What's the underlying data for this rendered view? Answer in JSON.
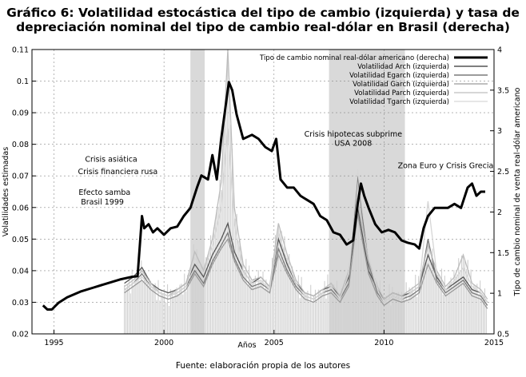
{
  "title_line1": "Gráfico 6: Volatilidad estocástica del tipo de cambio (izquierda) y tasa de",
  "title_line2": "depreciación nominal del tipo de cambio real-dólar en Brasil (derecha)",
  "source": "Fuente: elaboración propia de los autores",
  "chart_data": {
    "type": "line",
    "xlabel": "Años",
    "ylabel_left": "Volatilidades estimadas",
    "ylabel_right": "Tipo de cambio nominal de venta real-dólar americano",
    "xlim": [
      1994,
      2015
    ],
    "ylim_left": [
      0.02,
      0.11
    ],
    "ylim_right": [
      0.5,
      4
    ],
    "x_ticks": [
      1995,
      2000,
      2005,
      2010,
      2015
    ],
    "y_left_ticks": [
      "0.02",
      "0.03",
      "0.04",
      "0.05",
      "0.06",
      "0.07",
      "0.08",
      "0.09",
      "0.1",
      "0.11"
    ],
    "y_right_ticks": [
      "0.5",
      "1",
      "1.5",
      "2",
      "2.5",
      "3",
      "3.5",
      "4"
    ],
    "grid": true,
    "legend_position": "top-right",
    "shaded_periods": [
      {
        "start": 2001.2,
        "end": 2001.85
      },
      {
        "start": 2007.5,
        "end": 2010.95
      }
    ],
    "annotations": [
      {
        "text": "Crisis asiática",
        "x": 1997.6,
        "y": 0.0745
      },
      {
        "text": "Crisis financiera rusa",
        "x": 1997.9,
        "y": 0.0705
      },
      {
        "text": "Efecto samba",
        "x": 1997.3,
        "y": 0.064
      },
      {
        "text": "Brasil 1999",
        "x": 1997.2,
        "y": 0.061
      },
      {
        "text": "Crisis hipotecas subprime",
        "x": 2008.6,
        "y": 0.0825
      },
      {
        "text": "USA 2008",
        "x": 2008.6,
        "y": 0.0795
      },
      {
        "text": "Zona Euro y Crisis Grecia",
        "x": 2012.8,
        "y": 0.0725
      }
    ],
    "series": [
      {
        "name": "Tipo de cambio nominal real-dólar americano (derecha)",
        "axis": "right",
        "color": "#000000",
        "x": [
          1994.5,
          1994.7,
          1994.9,
          1995.2,
          1995.6,
          1996.2,
          1996.8,
          1997.4,
          1998.0,
          1998.5,
          1998.8,
          1999.0,
          1999.1,
          1999.3,
          1999.5,
          1999.7,
          2000.0,
          2000.3,
          2000.6,
          2000.9,
          2001.2,
          2001.5,
          2001.7,
          2002.0,
          2002.2,
          2002.4,
          2002.6,
          2002.8,
          2002.95,
          2003.1,
          2003.3,
          2003.6,
          2004.0,
          2004.3,
          2004.6,
          2004.9,
          2005.1,
          2005.3,
          2005.6,
          2005.9,
          2006.2,
          2006.5,
          2006.8,
          2007.1,
          2007.4,
          2007.7,
          2008.0,
          2008.3,
          2008.6,
          2008.8,
          2008.95,
          2009.1,
          2009.3,
          2009.6,
          2009.9,
          2010.2,
          2010.5,
          2010.8,
          2011.1,
          2011.4,
          2011.6,
          2011.8,
          2012.0,
          2012.3,
          2012.6,
          2012.9,
          2013.2,
          2013.5,
          2013.8,
          2014.0,
          2014.2,
          2014.4,
          2014.6
        ],
        "values": [
          0.85,
          0.8,
          0.8,
          0.88,
          0.95,
          1.02,
          1.07,
          1.12,
          1.17,
          1.2,
          1.21,
          1.95,
          1.8,
          1.85,
          1.75,
          1.8,
          1.72,
          1.8,
          1.82,
          1.95,
          2.05,
          2.3,
          2.45,
          2.4,
          2.7,
          2.4,
          2.9,
          3.3,
          3.6,
          3.5,
          3.2,
          2.9,
          2.95,
          2.9,
          2.8,
          2.75,
          2.9,
          2.4,
          2.3,
          2.3,
          2.2,
          2.15,
          2.1,
          1.95,
          1.9,
          1.75,
          1.72,
          1.6,
          1.65,
          2.1,
          2.35,
          2.2,
          2.05,
          1.85,
          1.75,
          1.78,
          1.75,
          1.65,
          1.62,
          1.6,
          1.55,
          1.8,
          1.95,
          2.05,
          2.05,
          2.05,
          2.1,
          2.05,
          2.3,
          2.35,
          2.2,
          2.25,
          2.25
        ]
      },
      {
        "name": "Volatilidad Arch (izquierda)",
        "axis": "left",
        "color": "#555555",
        "x": [
          1998.2,
          1998.6,
          1999.0,
          1999.4,
          1999.8,
          2000.2,
          2000.6,
          2001.0,
          2001.4,
          2001.8,
          2002.2,
          2002.6,
          2002.9,
          2003.2,
          2003.6,
          2004.0,
          2004.4,
          2004.8,
          2005.2,
          2005.6,
          2006.0,
          2006.4,
          2006.8,
          2007.2,
          2007.6,
          2008.0,
          2008.4,
          2008.8,
          2009.0,
          2009.3,
          2009.7,
          2010.0,
          2010.4,
          2010.8,
          2011.2,
          2011.6,
          2012.0,
          2012.4,
          2012.8,
          2013.2,
          2013.6,
          2014.0,
          2014.4,
          2014.7
        ],
        "values": [
          0.036,
          0.038,
          0.041,
          0.036,
          0.034,
          0.033,
          0.034,
          0.036,
          0.042,
          0.038,
          0.045,
          0.05,
          0.055,
          0.046,
          0.04,
          0.036,
          0.038,
          0.035,
          0.05,
          0.042,
          0.036,
          0.033,
          0.032,
          0.034,
          0.035,
          0.032,
          0.038,
          0.06,
          0.052,
          0.04,
          0.034,
          0.031,
          0.033,
          0.032,
          0.033,
          0.035,
          0.045,
          0.038,
          0.034,
          0.036,
          0.038,
          0.034,
          0.033,
          0.03
        ]
      },
      {
        "name": "Volatilidad Egarch (izquierda)",
        "axis": "left",
        "color": "#7a7a7a",
        "x": [
          1998.2,
          1998.6,
          1999.0,
          1999.4,
          1999.8,
          2000.2,
          2000.6,
          2001.0,
          2001.4,
          2001.8,
          2002.2,
          2002.6,
          2002.9,
          2003.2,
          2003.6,
          2004.0,
          2004.4,
          2004.8,
          2005.2,
          2005.6,
          2006.0,
          2006.4,
          2006.8,
          2007.2,
          2007.6,
          2008.0,
          2008.4,
          2008.8,
          2009.0,
          2009.3,
          2009.7,
          2010.0,
          2010.4,
          2010.8,
          2011.2,
          2011.6,
          2012.0,
          2012.4,
          2012.8,
          2013.2,
          2013.6,
          2014.0,
          2014.4,
          2014.7
        ],
        "values": [
          0.034,
          0.036,
          0.039,
          0.035,
          0.033,
          0.032,
          0.033,
          0.035,
          0.04,
          0.036,
          0.043,
          0.048,
          0.052,
          0.044,
          0.038,
          0.035,
          0.036,
          0.034,
          0.047,
          0.04,
          0.035,
          0.032,
          0.031,
          0.033,
          0.034,
          0.031,
          0.036,
          0.07,
          0.058,
          0.042,
          0.033,
          0.03,
          0.032,
          0.031,
          0.032,
          0.034,
          0.05,
          0.037,
          0.033,
          0.035,
          0.037,
          0.033,
          0.032,
          0.029
        ]
      },
      {
        "name": "Volatilidad Garch (izquierda)",
        "axis": "left",
        "color": "#9a9a9a",
        "x": [
          1998.2,
          1998.6,
          1999.0,
          1999.4,
          1999.8,
          2000.2,
          2000.6,
          2001.0,
          2001.4,
          2001.8,
          2002.2,
          2002.6,
          2002.9,
          2003.2,
          2003.6,
          2004.0,
          2004.4,
          2004.8,
          2005.2,
          2005.6,
          2006.0,
          2006.4,
          2006.8,
          2007.2,
          2007.6,
          2008.0,
          2008.4,
          2008.8,
          2009.0,
          2009.3,
          2009.7,
          2010.0,
          2010.4,
          2010.8,
          2011.2,
          2011.6,
          2012.0,
          2012.4,
          2012.8,
          2013.2,
          2013.6,
          2014.0,
          2014.4,
          2014.7
        ],
        "values": [
          0.033,
          0.035,
          0.037,
          0.034,
          0.032,
          0.031,
          0.032,
          0.034,
          0.039,
          0.035,
          0.042,
          0.047,
          0.05,
          0.043,
          0.037,
          0.034,
          0.035,
          0.033,
          0.045,
          0.039,
          0.034,
          0.031,
          0.03,
          0.032,
          0.033,
          0.03,
          0.035,
          0.058,
          0.05,
          0.039,
          0.032,
          0.029,
          0.031,
          0.03,
          0.031,
          0.033,
          0.042,
          0.036,
          0.032,
          0.034,
          0.036,
          0.032,
          0.031,
          0.028
        ]
      },
      {
        "name": "Volatilidad Parch (izquierda)",
        "axis": "left",
        "color": "#bdbdbd",
        "x": [
          1998.2,
          1998.6,
          1999.0,
          1999.4,
          1999.8,
          2000.2,
          2000.6,
          2001.0,
          2001.4,
          2001.8,
          2002.2,
          2002.6,
          2002.9,
          2003.2,
          2003.6,
          2004.0,
          2004.4,
          2004.8,
          2005.2,
          2005.6,
          2006.0,
          2006.4,
          2006.8,
          2007.2,
          2007.6,
          2008.0,
          2008.4,
          2008.8,
          2009.0,
          2009.3,
          2009.7,
          2010.0,
          2010.4,
          2010.8,
          2011.2,
          2011.6,
          2012.0,
          2012.4,
          2012.8,
          2013.2,
          2013.6,
          2014.0,
          2014.4,
          2014.7
        ],
        "values": [
          0.035,
          0.037,
          0.04,
          0.036,
          0.033,
          0.032,
          0.034,
          0.036,
          0.046,
          0.04,
          0.05,
          0.068,
          0.11,
          0.06,
          0.042,
          0.037,
          0.038,
          0.035,
          0.055,
          0.045,
          0.037,
          0.033,
          0.032,
          0.034,
          0.036,
          0.032,
          0.04,
          0.063,
          0.055,
          0.043,
          0.035,
          0.031,
          0.033,
          0.032,
          0.034,
          0.036,
          0.048,
          0.04,
          0.035,
          0.038,
          0.045,
          0.036,
          0.034,
          0.031
        ]
      },
      {
        "name": "Volatilidad Tgarch (izquierda)",
        "axis": "left",
        "color": "#d6d6d6",
        "x": [
          1998.2,
          1998.6,
          1999.0,
          1999.4,
          1999.8,
          2000.2,
          2000.6,
          2001.0,
          2001.4,
          2001.8,
          2002.2,
          2002.6,
          2002.9,
          2003.2,
          2003.6,
          2004.0,
          2004.4,
          2004.8,
          2005.2,
          2005.6,
          2006.0,
          2006.4,
          2006.8,
          2007.2,
          2007.6,
          2008.0,
          2008.4,
          2008.8,
          2009.0,
          2009.3,
          2009.7,
          2010.0,
          2010.4,
          2010.8,
          2011.2,
          2011.6,
          2012.0,
          2012.4,
          2012.8,
          2013.2,
          2013.6,
          2014.0,
          2014.4,
          2014.7
        ],
        "values": [
          0.034,
          0.036,
          0.038,
          0.035,
          0.033,
          0.032,
          0.033,
          0.035,
          0.044,
          0.039,
          0.048,
          0.06,
          0.085,
          0.055,
          0.04,
          0.036,
          0.037,
          0.034,
          0.052,
          0.043,
          0.036,
          0.032,
          0.031,
          0.033,
          0.035,
          0.031,
          0.039,
          0.072,
          0.06,
          0.045,
          0.034,
          0.03,
          0.032,
          0.031,
          0.033,
          0.035,
          0.062,
          0.039,
          0.034,
          0.037,
          0.041,
          0.035,
          0.033,
          0.03
        ]
      }
    ]
  }
}
